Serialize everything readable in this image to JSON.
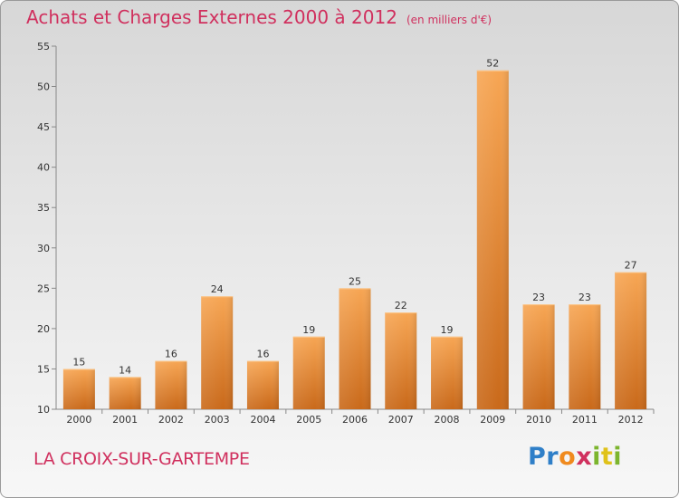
{
  "title": "Achats et Charges Externes 2000 à 2012",
  "subtitle": "(en milliers d'€)",
  "place": "LA CROIX-SUR-GARTEMPE",
  "logo": {
    "letters": [
      "P",
      "r",
      "o",
      "x",
      "i",
      "t",
      "i"
    ],
    "colors": [
      "#2f7fc8",
      "#2f7fc8",
      "#f08a1e",
      "#d0305e",
      "#7cb52e",
      "#e0c21b",
      "#7cb52e"
    ]
  },
  "colors": {
    "accent": "#d0305e",
    "bar_top": "#f7a654",
    "bar_bottom": "#c9691a"
  },
  "chart_data": {
    "type": "bar",
    "categories": [
      "2000",
      "2001",
      "2002",
      "2003",
      "2004",
      "2005",
      "2006",
      "2007",
      "2008",
      "2009",
      "2010",
      "2011",
      "2012"
    ],
    "values": [
      15,
      14,
      16,
      24,
      16,
      19,
      25,
      22,
      19,
      52,
      23,
      23,
      27
    ],
    "ylim": [
      10,
      55
    ],
    "yticks": [
      10,
      15,
      20,
      25,
      30,
      35,
      40,
      45,
      50,
      55
    ],
    "grid": false,
    "legend": "none"
  }
}
